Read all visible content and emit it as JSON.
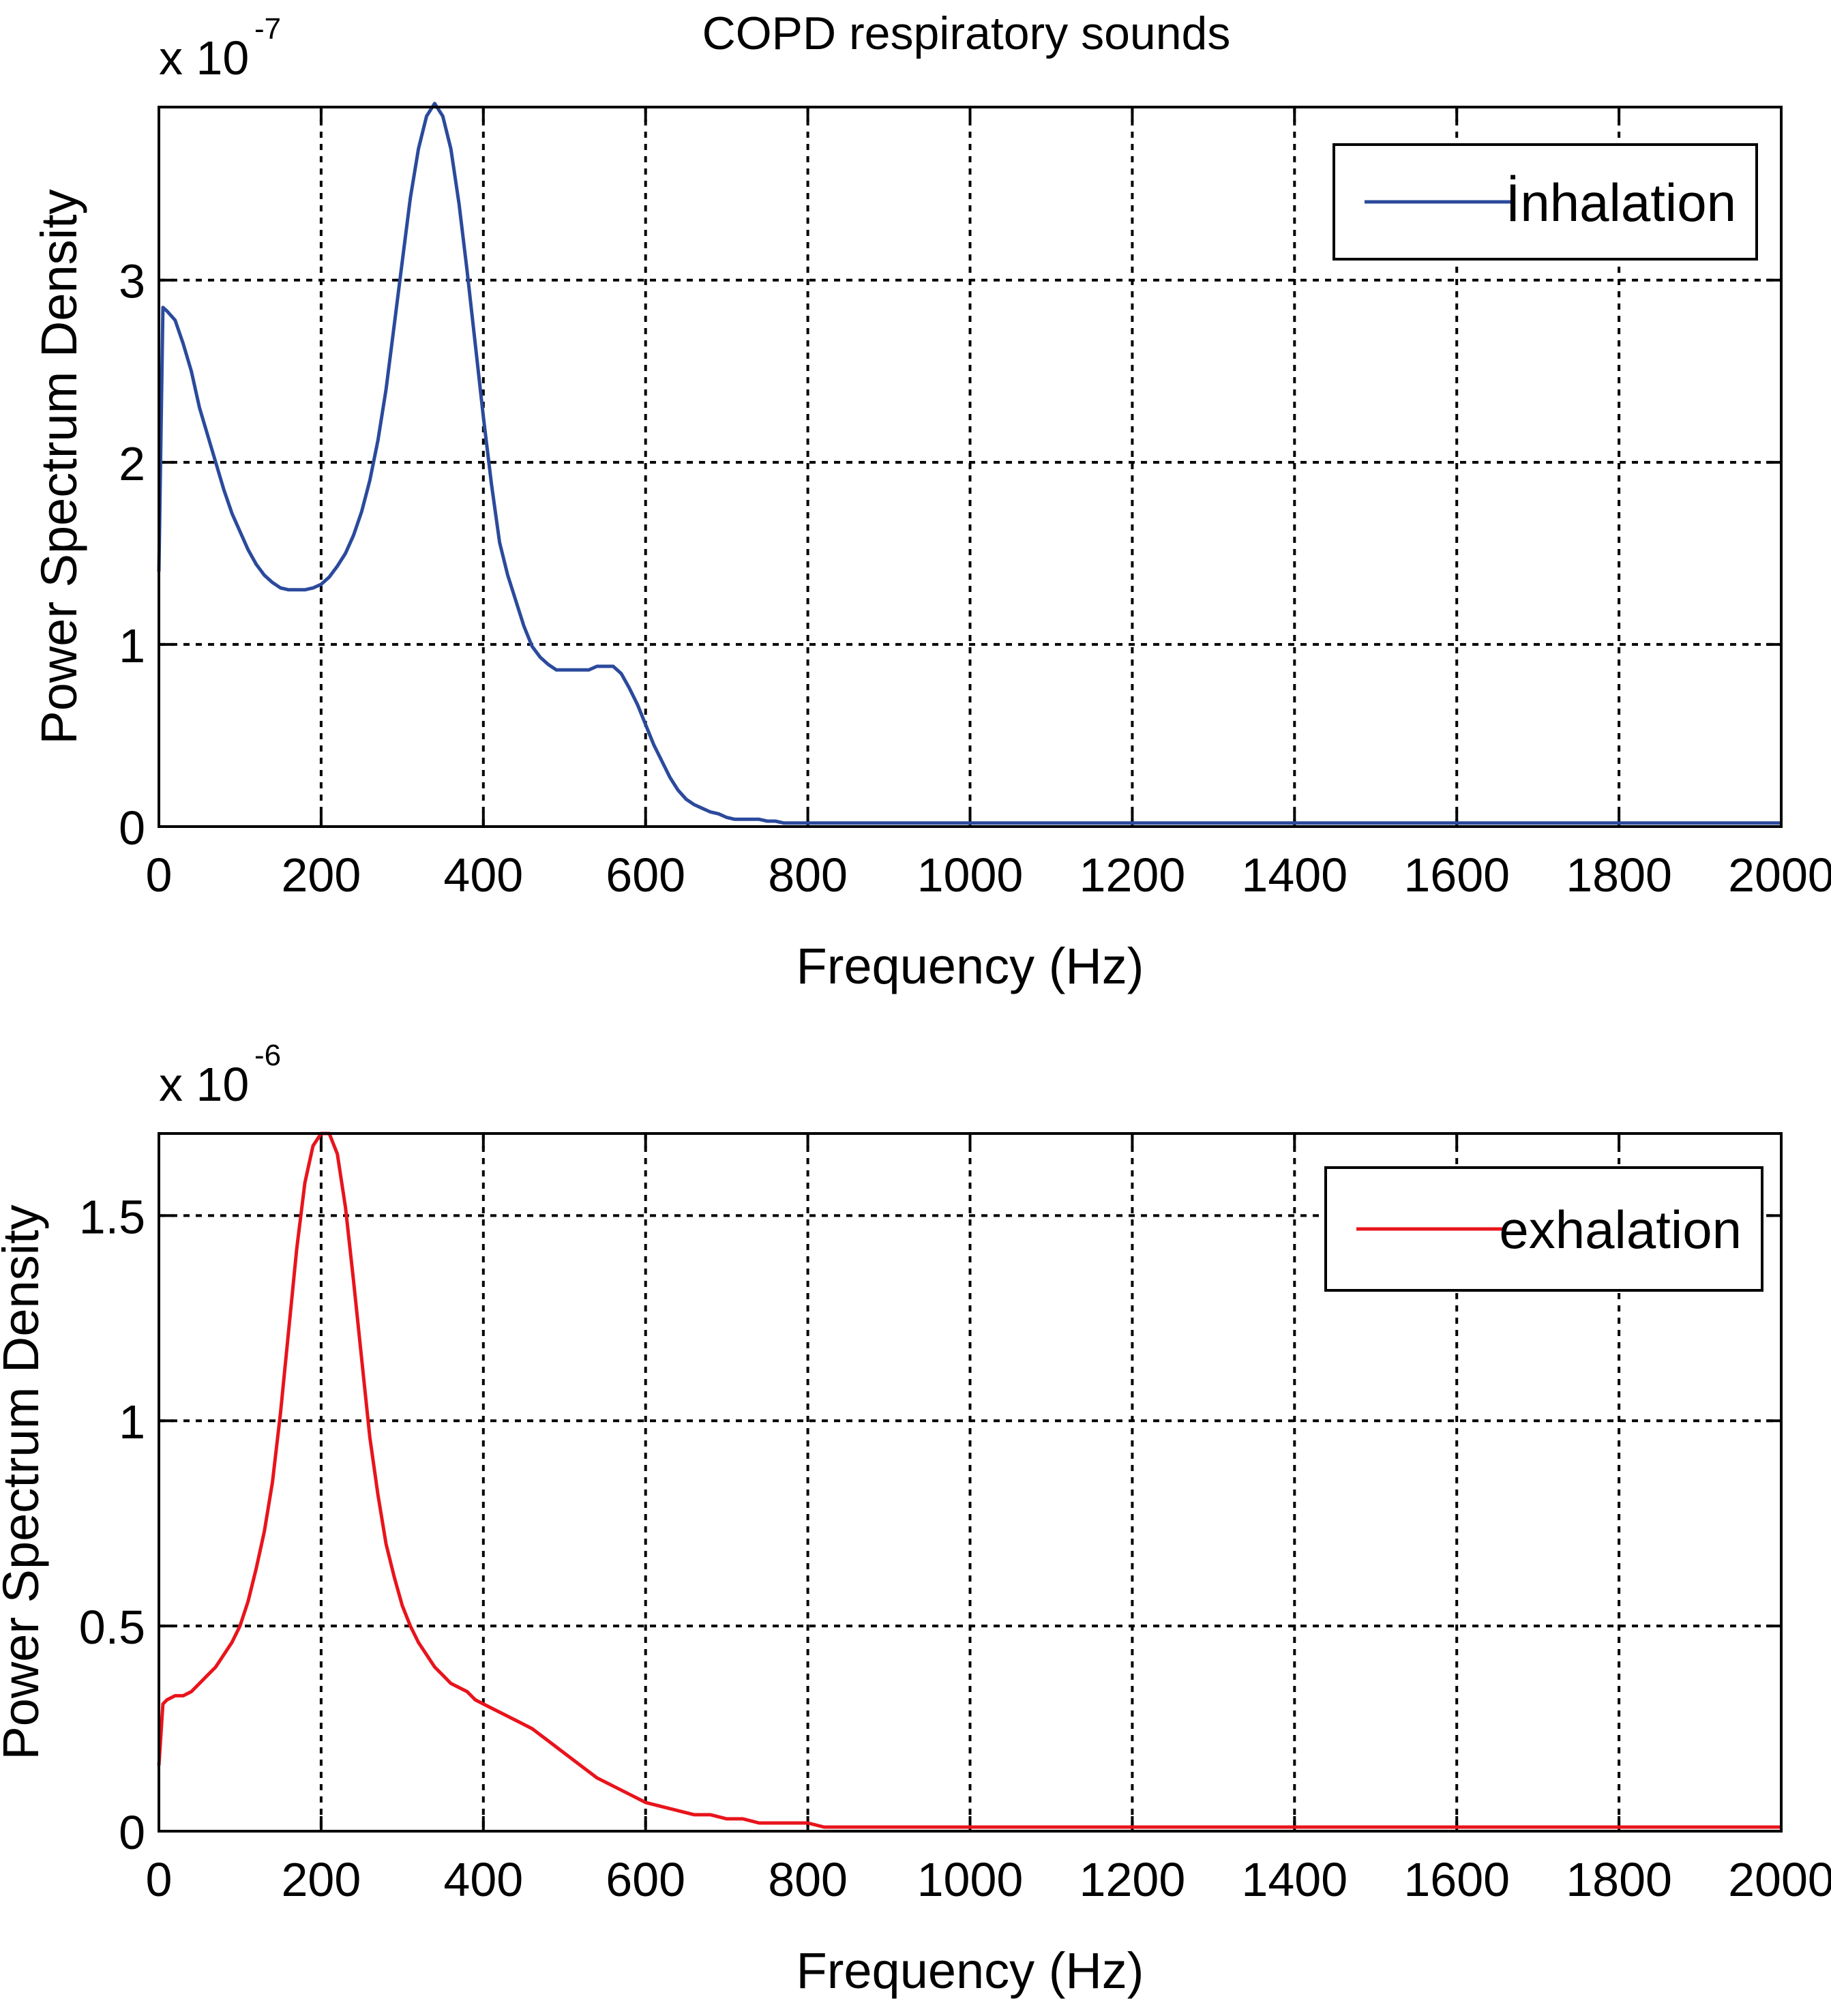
{
  "figure_title": "COPD respiratory sounds",
  "chart_data": [
    {
      "type": "line",
      "title": "COPD respiratory sounds",
      "xlabel": "Frequency (Hz)",
      "ylabel": "Power Spectrum Density",
      "y_exponent_label": "x 10",
      "y_exponent": "-7",
      "xlim": [
        0,
        2000
      ],
      "ylim": [
        0,
        3.95
      ],
      "x_ticks": [
        0,
        200,
        400,
        600,
        800,
        1000,
        1200,
        1400,
        1600,
        1800,
        2000
      ],
      "x_tick_labels": [
        "0",
        "200",
        "400",
        "600",
        "800",
        "1000",
        "1200",
        "1400",
        "1600",
        "1800",
        "2000"
      ],
      "y_ticks": [
        0,
        1,
        2,
        3
      ],
      "y_tick_labels": [
        "0",
        "1",
        "2",
        "3"
      ],
      "grid": true,
      "legend_position": "top-right",
      "series": [
        {
          "name": "İnhalation",
          "color": "#2b4a9c",
          "x": [
            0,
            5,
            10,
            20,
            30,
            40,
            50,
            60,
            70,
            80,
            90,
            100,
            110,
            120,
            130,
            140,
            150,
            160,
            170,
            180,
            190,
            200,
            210,
            220,
            230,
            240,
            250,
            260,
            270,
            280,
            290,
            300,
            310,
            320,
            330,
            340,
            350,
            360,
            370,
            380,
            390,
            400,
            410,
            420,
            430,
            440,
            450,
            460,
            470,
            480,
            490,
            500,
            510,
            520,
            530,
            540,
            550,
            560,
            570,
            580,
            590,
            600,
            610,
            620,
            630,
            640,
            650,
            660,
            670,
            680,
            690,
            700,
            710,
            720,
            730,
            740,
            750,
            760,
            770,
            780,
            790,
            800,
            810,
            820,
            830,
            840,
            850,
            860,
            870,
            880,
            890,
            900,
            910,
            920,
            1000,
            1200,
            1400,
            1600,
            1800,
            2000
          ],
          "y": [
            1.4,
            2.85,
            2.83,
            2.78,
            2.65,
            2.5,
            2.3,
            2.15,
            2.0,
            1.85,
            1.72,
            1.62,
            1.52,
            1.44,
            1.38,
            1.34,
            1.31,
            1.3,
            1.3,
            1.3,
            1.31,
            1.33,
            1.37,
            1.43,
            1.5,
            1.6,
            1.73,
            1.9,
            2.12,
            2.4,
            2.75,
            3.1,
            3.45,
            3.72,
            3.9,
            3.97,
            3.9,
            3.72,
            3.42,
            3.05,
            2.65,
            2.25,
            1.88,
            1.56,
            1.38,
            1.24,
            1.1,
            0.99,
            0.93,
            0.89,
            0.86,
            0.86,
            0.86,
            0.86,
            0.86,
            0.88,
            0.88,
            0.88,
            0.84,
            0.76,
            0.67,
            0.56,
            0.45,
            0.36,
            0.27,
            0.2,
            0.15,
            0.12,
            0.1,
            0.08,
            0.07,
            0.05,
            0.04,
            0.04,
            0.04,
            0.04,
            0.03,
            0.03,
            0.02,
            0.02,
            0.02,
            0.02,
            0.02,
            0.02,
            0.02,
            0.02,
            0.02,
            0.02,
            0.02,
            0.02,
            0.02,
            0.02,
            0.02,
            0.02,
            0.02,
            0.02,
            0.02,
            0.02,
            0.02,
            0.02
          ]
        }
      ]
    },
    {
      "type": "line",
      "title": "",
      "xlabel": "Frequency (Hz)",
      "ylabel": "Power Spectrum Density",
      "y_exponent_label": "x 10",
      "y_exponent": "-6",
      "xlim": [
        0,
        2000
      ],
      "ylim": [
        0,
        1.7
      ],
      "x_ticks": [
        0,
        200,
        400,
        600,
        800,
        1000,
        1200,
        1400,
        1600,
        1800,
        2000
      ],
      "x_tick_labels": [
        "0",
        "200",
        "400",
        "600",
        "800",
        "1000",
        "1200",
        "1400",
        "1600",
        "1800",
        "2000"
      ],
      "y_ticks": [
        0,
        0.5,
        1,
        1.5
      ],
      "y_tick_labels": [
        "0",
        "0.5",
        "1",
        "1.5"
      ],
      "grid": true,
      "legend_position": "top-right",
      "series": [
        {
          "name": "exhalation",
          "color": "#e8141c",
          "x": [
            0,
            5,
            10,
            20,
            30,
            40,
            50,
            60,
            70,
            80,
            90,
            100,
            110,
            120,
            130,
            140,
            150,
            160,
            170,
            180,
            190,
            200,
            210,
            220,
            230,
            240,
            250,
            260,
            270,
            280,
            290,
            300,
            310,
            320,
            330,
            340,
            350,
            360,
            370,
            380,
            390,
            400,
            420,
            440,
            460,
            480,
            500,
            520,
            540,
            560,
            580,
            600,
            620,
            640,
            660,
            680,
            700,
            720,
            740,
            760,
            780,
            800,
            820,
            840,
            860,
            880,
            900,
            920,
            940,
            1000,
            1200,
            1400,
            1600,
            1800,
            2000
          ],
          "y": [
            0.16,
            0.31,
            0.32,
            0.33,
            0.33,
            0.34,
            0.36,
            0.38,
            0.4,
            0.43,
            0.46,
            0.5,
            0.56,
            0.64,
            0.73,
            0.85,
            1.02,
            1.22,
            1.42,
            1.58,
            1.67,
            1.7,
            1.7,
            1.65,
            1.52,
            1.34,
            1.15,
            0.96,
            0.82,
            0.7,
            0.62,
            0.55,
            0.5,
            0.46,
            0.43,
            0.4,
            0.38,
            0.36,
            0.35,
            0.34,
            0.32,
            0.31,
            0.29,
            0.27,
            0.25,
            0.22,
            0.19,
            0.16,
            0.13,
            0.11,
            0.09,
            0.07,
            0.06,
            0.05,
            0.04,
            0.04,
            0.03,
            0.03,
            0.02,
            0.02,
            0.02,
            0.02,
            0.01,
            0.01,
            0.01,
            0.01,
            0.01,
            0.01,
            0.01,
            0.01,
            0.01,
            0.01,
            0.01,
            0.01,
            0.01
          ]
        }
      ]
    }
  ]
}
